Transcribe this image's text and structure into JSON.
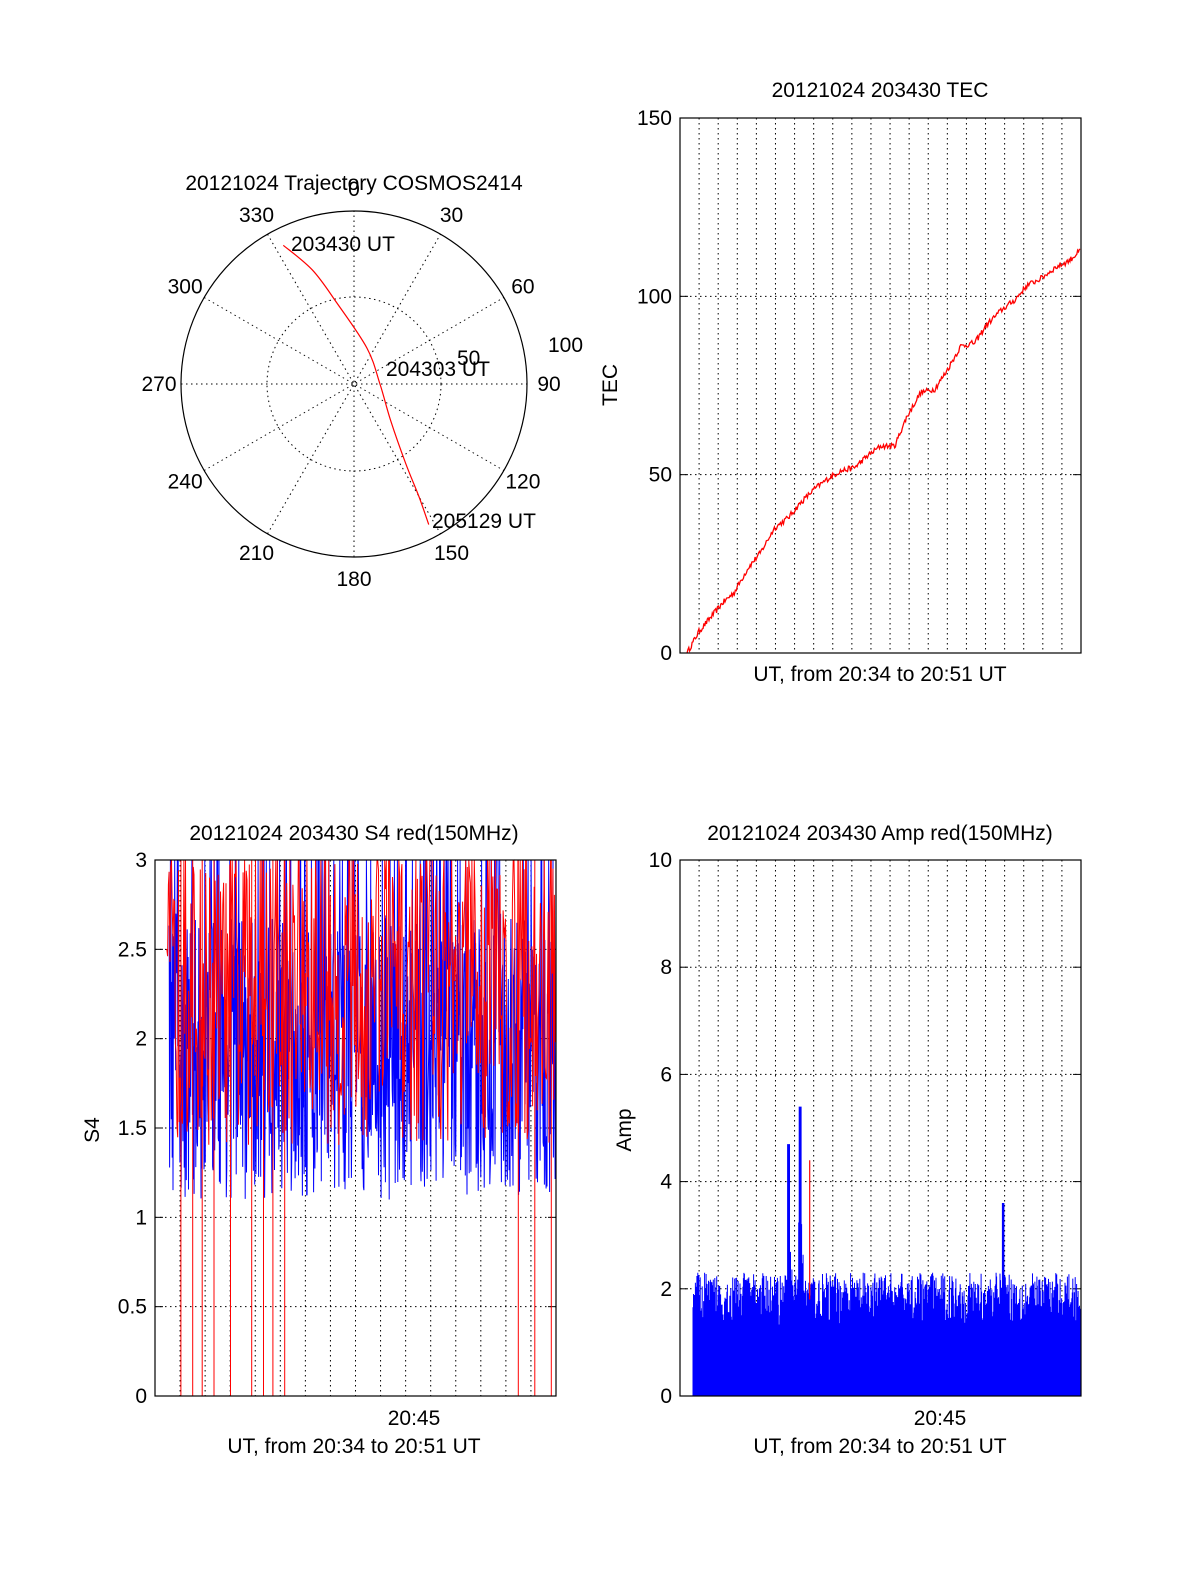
{
  "colors": {
    "red": "#ff0000",
    "blue": "#0000ff",
    "axis": "#000000",
    "background": "#ffffff"
  },
  "panels": {
    "polar": {
      "title": "20121024 Trajectory COSMOS2414",
      "azimuth_labels": [
        "0",
        "30",
        "60",
        "90",
        "120",
        "150",
        "180",
        "210",
        "240",
        "270",
        "300",
        "330"
      ],
      "radius_labels": [
        "50",
        "100"
      ],
      "start_label": "203430 UT",
      "mid_label": "204303 UT",
      "end_label": "205129 UT"
    },
    "tec": {
      "title": "20121024 203430 TEC",
      "xlabel": "UT, from 20:34 to 20:51 UT",
      "ylabel": "TEC",
      "y_ticks": [
        "0",
        "50",
        "100",
        "150"
      ]
    },
    "s4": {
      "title": "20121024 203430 S4 red(150MHz)",
      "xlabel": "UT, from 20:34 to 20:51 UT",
      "ylabel": "S4",
      "x_tick": "20:45",
      "y_ticks": [
        "0",
        "0.5",
        "1",
        "1.5",
        "2",
        "2.5",
        "3"
      ]
    },
    "amp": {
      "title": "20121024 203430 Amp red(150MHz)",
      "xlabel": "UT, from 20:34 to 20:51 UT",
      "ylabel": "Amp",
      "x_tick": "20:45",
      "y_ticks": [
        "0",
        "2",
        "4",
        "6",
        "8",
        "10"
      ]
    }
  },
  "chart_data": [
    {
      "type": "polar",
      "title": "20121024 Trajectory COSMOS2414",
      "theta_ticks_deg": [
        0,
        30,
        60,
        90,
        120,
        150,
        180,
        210,
        240,
        270,
        300,
        330
      ],
      "r_ticks": [
        50,
        100
      ],
      "r_max": 100,
      "series": [
        {
          "name": "",
          "color": "#ff0000",
          "points": [
            {
              "az": 333,
              "r": 90,
              "label": "203430 UT"
            },
            {
              "az": 340,
              "r": 70
            },
            {
              "az": 348,
              "r": 48
            },
            {
              "az": 20,
              "r": 22
            },
            {
              "az": 90,
              "r": 15,
              "label": "204303 UT"
            },
            {
              "az": 135,
              "r": 30
            },
            {
              "az": 147,
              "r": 55
            },
            {
              "az": 150,
              "r": 75
            },
            {
              "az": 152,
              "r": 92,
              "label": "205129 UT"
            }
          ]
        }
      ]
    },
    {
      "type": "line",
      "title": "20121024 203430 TEC",
      "xlabel": "UT, from 20:34 to 20:51 UT",
      "ylabel": "TEC",
      "xlim_min": [
        0,
        17
      ],
      "ylim": [
        0,
        150
      ],
      "grid": true,
      "series": [
        {
          "name": "",
          "color": "#ff0000",
          "x": [
            0.3,
            0.8,
            1.3,
            1.8,
            2.3,
            2.9,
            3.4,
            4.0,
            4.6,
            5.1,
            5.7,
            6.3,
            6.8,
            7.4,
            7.9,
            8.5,
            9.1,
            9.6,
            10.2,
            10.8,
            11.3,
            11.9,
            12.5,
            13.0,
            13.6,
            14.2,
            14.7,
            15.3,
            15.9,
            16.5,
            17.0
          ],
          "y": [
            0,
            6,
            10,
            14,
            17,
            24,
            28,
            35,
            38,
            42,
            46,
            49,
            51,
            52,
            55,
            58,
            58,
            66,
            73,
            74,
            79,
            86,
            87,
            92,
            96,
            99,
            103,
            105,
            108,
            110,
            113
          ]
        }
      ]
    },
    {
      "type": "line",
      "title": "20121024 203430 S4 red(150MHz)",
      "xlabel": "UT, from 20:34 to 20:51 UT",
      "ylabel": "S4",
      "x_ticks": [
        "20:45"
      ],
      "xlim_min": [
        0,
        17
      ],
      "ylim": [
        0,
        3
      ],
      "grid": true,
      "series": [
        {
          "name": "",
          "color": "#0000ff",
          "band": {
            "base_level": 1.9,
            "spread": 0.8,
            "min": 0.9,
            "max": 3.0
          }
        },
        {
          "name": "",
          "color": "#ff0000",
          "note_drops_to_zero_at_min": [
            1.1,
            1.6,
            2.0,
            2.5,
            3.2,
            4.1,
            4.6,
            5.0,
            5.5,
            15.4,
            16.1,
            16.8
          ],
          "band": {
            "base_level": 2.2,
            "spread": 0.8,
            "min": 0.7,
            "max": 3.0
          }
        }
      ]
    },
    {
      "type": "bar",
      "title": "20121024 203430 Amp red(150MHz)",
      "xlabel": "UT, from 20:34 to 20:51 UT",
      "ylabel": "Amp",
      "x_ticks": [
        "20:45"
      ],
      "xlim_min": [
        0,
        17
      ],
      "ylim": [
        0,
        10
      ],
      "grid": true,
      "series": [
        {
          "name": "",
          "color": "#0000ff",
          "band": {
            "base_level": 1.6,
            "spread": 0.5
          },
          "peaks": [
            {
              "x_min": 4.6,
              "y": 4.7
            },
            {
              "x_min": 5.1,
              "y": 5.4
            },
            {
              "x_min": 13.7,
              "y": 3.6
            }
          ]
        },
        {
          "name": "",
          "color": "#ff0000",
          "peaks": [
            {
              "x_min": 5.5,
              "y": 4.4
            }
          ]
        }
      ]
    }
  ]
}
